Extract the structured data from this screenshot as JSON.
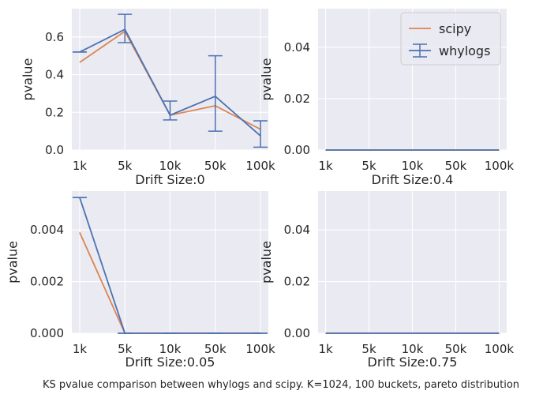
{
  "caption": "KS pvalue comparison between whylogs and scipy. K=1024, 100 buckets, pareto distribution",
  "colors": {
    "scipy": "#dd8452",
    "whylogs": "#4c72b0"
  },
  "legend": {
    "placement": "upper right",
    "panel": 1,
    "entries": [
      "scipy",
      "whylogs"
    ]
  },
  "chart_data": [
    {
      "type": "line",
      "xlabel": "Drift Size:0",
      "ylabel": "pvalue",
      "categories": [
        "1k",
        "5k",
        "10k",
        "50k",
        "100k"
      ],
      "ylim": [
        0,
        0.75
      ],
      "yticks": [
        0.0,
        0.2,
        0.4,
        0.6
      ],
      "ytick_labels": [
        "0.0",
        "0.2",
        "0.4",
        "0.6"
      ],
      "grid": true,
      "series": [
        {
          "name": "scipy",
          "values": [
            0.465,
            0.63,
            0.185,
            0.235,
            0.11
          ]
        },
        {
          "name": "whylogs",
          "values": [
            0.52,
            0.64,
            0.185,
            0.285,
            0.075
          ],
          "err_low": [
            0.52,
            0.57,
            0.16,
            0.1,
            0.015
          ],
          "err_high": [
            0.52,
            0.72,
            0.26,
            0.5,
            0.155
          ]
        }
      ]
    },
    {
      "type": "line",
      "xlabel": "Drift Size:0.4",
      "ylabel": "pvalue",
      "categories": [
        "1k",
        "5k",
        "10k",
        "50k",
        "100k"
      ],
      "ylim": [
        0,
        0.055
      ],
      "yticks": [
        0.0,
        0.02,
        0.04
      ],
      "ytick_labels": [
        "0.00",
        "0.02",
        "0.04"
      ],
      "grid": true,
      "series": [
        {
          "name": "scipy",
          "values": [
            0,
            0,
            0,
            0,
            0
          ]
        },
        {
          "name": "whylogs",
          "values": [
            0,
            0,
            0,
            0,
            0
          ]
        }
      ]
    },
    {
      "type": "line",
      "xlabel": "Drift Size:0.05",
      "ylabel": "pvalue",
      "categories": [
        "1k",
        "5k",
        "10k",
        "50k",
        "100k"
      ],
      "ylim": [
        0,
        0.0055
      ],
      "yticks": [
        0.0,
        0.002,
        0.004
      ],
      "ytick_labels": [
        "0.000",
        "0.002",
        "0.004"
      ],
      "grid": true,
      "series": [
        {
          "name": "scipy",
          "values": [
            0.0039,
            0.0,
            0.0,
            0.0,
            0.0
          ]
        },
        {
          "name": "whylogs",
          "values": [
            0.00525,
            0.0,
            0.0,
            0.0,
            0.0
          ],
          "err_low": [
            0.00525,
            0.0,
            0.0,
            0.0,
            0.0
          ],
          "err_high": [
            0.00525,
            0.0,
            0.0,
            0.0,
            0.0
          ]
        }
      ]
    },
    {
      "type": "line",
      "xlabel": "Drift Size:0.75",
      "ylabel": "pvalue",
      "categories": [
        "1k",
        "5k",
        "10k",
        "50k",
        "100k"
      ],
      "ylim": [
        0,
        0.055
      ],
      "yticks": [
        0.0,
        0.02,
        0.04
      ],
      "ytick_labels": [
        "0.00",
        "0.02",
        "0.04"
      ],
      "grid": true,
      "series": [
        {
          "name": "scipy",
          "values": [
            0,
            0,
            0,
            0,
            0
          ]
        },
        {
          "name": "whylogs",
          "values": [
            0,
            0,
            0,
            0,
            0
          ]
        }
      ]
    }
  ]
}
